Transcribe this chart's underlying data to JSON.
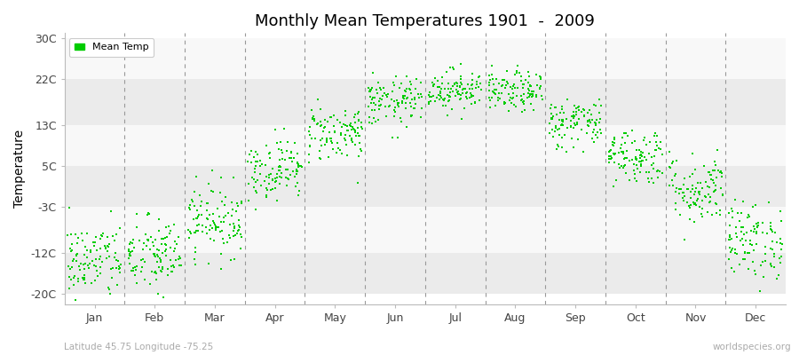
{
  "title": "Monthly Mean Temperatures 1901  -  2009",
  "ylabel": "Temperature",
  "bottom_left_text": "Latitude 45.75 Longitude -75.25",
  "bottom_right_text": "worldspecies.org",
  "legend_label": "Mean Temp",
  "dot_color": "#00cc00",
  "figure_bg_color": "#ffffff",
  "plot_bg_color": "#ffffff",
  "band_colors": [
    "#ebebeb",
    "#f8f8f8"
  ],
  "yticks": [
    -20,
    -12,
    -3,
    5,
    13,
    22,
    30
  ],
  "ytick_labels": [
    "-20C",
    "-12C",
    "-3C",
    "5C",
    "13C",
    "22C",
    "30C"
  ],
  "ylim": [
    -22,
    31
  ],
  "months": [
    "Jan",
    "Feb",
    "Mar",
    "Apr",
    "May",
    "Jun",
    "Jul",
    "Aug",
    "Sep",
    "Oct",
    "Nov",
    "Dec"
  ],
  "monthly_means": [
    -13.5,
    -12.5,
    -5.5,
    4.5,
    11.5,
    17.5,
    20.0,
    19.5,
    13.5,
    7.0,
    0.5,
    -9.5
  ],
  "monthly_stds": [
    3.8,
    3.8,
    3.5,
    3.0,
    2.8,
    2.4,
    2.0,
    2.0,
    2.5,
    2.8,
    3.5,
    3.8
  ],
  "n_years": 109,
  "seed": 42
}
